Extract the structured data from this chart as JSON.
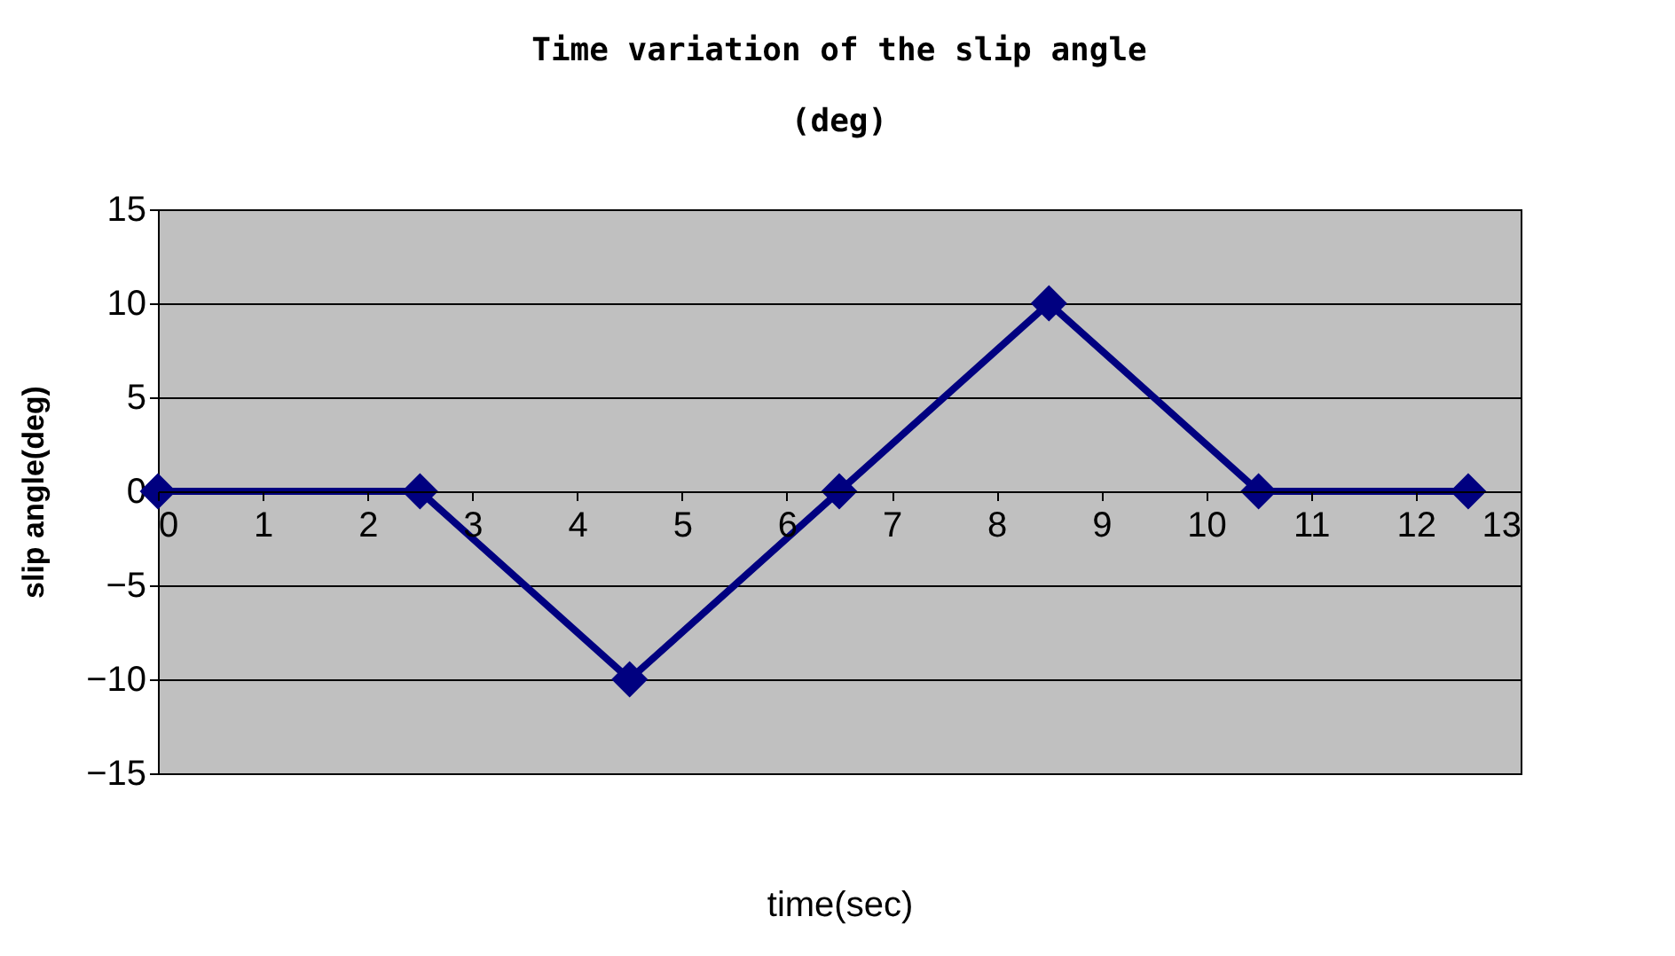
{
  "chart_data": {
    "type": "line",
    "title": "Time variation of the slip angle\n(deg)",
    "xlabel": "time(sec)",
    "ylabel": "slip angle(deg)",
    "x": [
      0,
      2.5,
      4.5,
      6.5,
      8.5,
      10.5,
      12.5
    ],
    "series": [
      {
        "color": "#000080",
        "values": [
          0,
          0,
          -10,
          0,
          10,
          0,
          0
        ]
      }
    ],
    "xlim": [
      0,
      13
    ],
    "xticks": [
      0,
      1,
      2,
      3,
      4,
      5,
      6,
      7,
      8,
      9,
      10,
      11,
      12,
      13
    ],
    "ylim": [
      -15,
      15
    ],
    "yticks": [
      -15,
      -10,
      -5,
      0,
      5,
      10,
      15
    ],
    "grid": "y",
    "legend": false,
    "marker": "diamond",
    "line_style": "solid"
  }
}
